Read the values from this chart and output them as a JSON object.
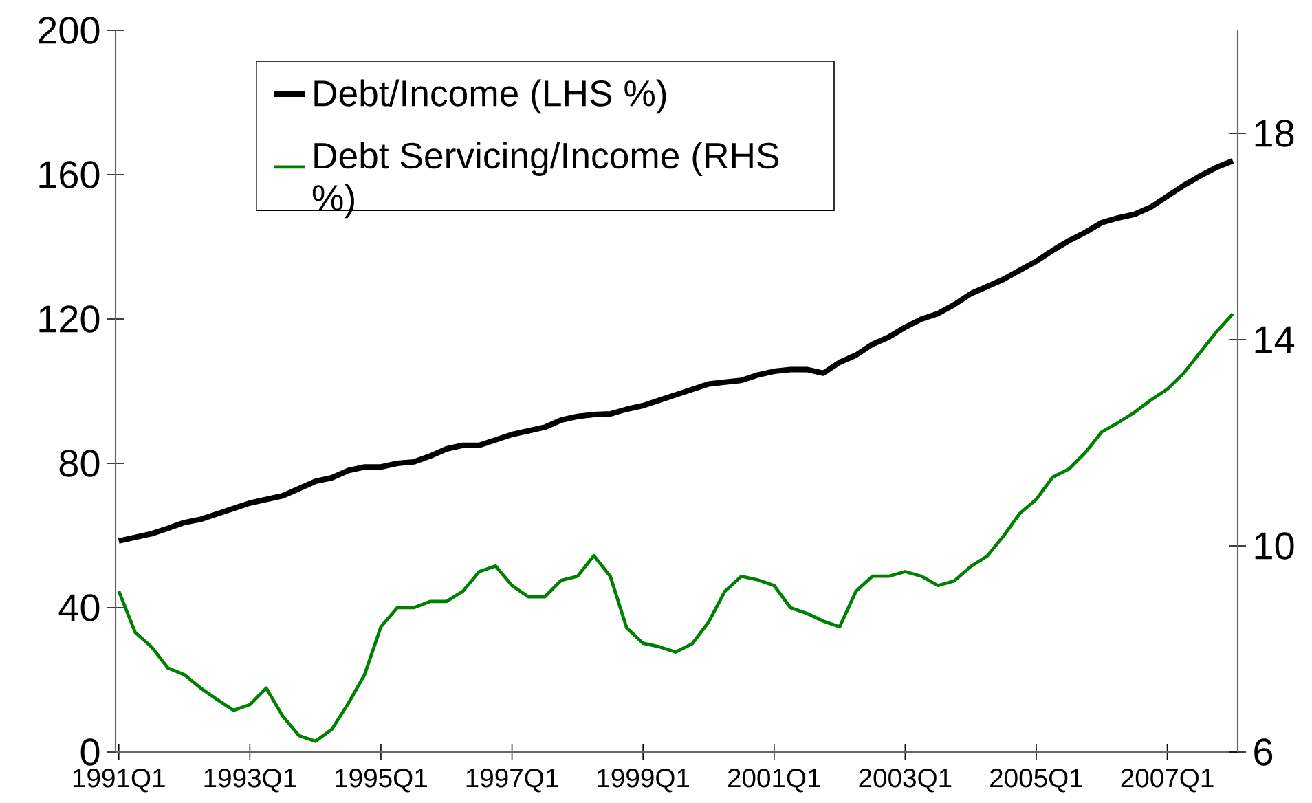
{
  "chart_data": {
    "type": "line",
    "categories": [
      "1991Q1",
      null,
      null,
      null,
      null,
      null,
      null,
      null,
      "1993Q1",
      null,
      null,
      null,
      null,
      null,
      null,
      null,
      "1995Q1",
      null,
      null,
      null,
      null,
      null,
      null,
      null,
      "1997Q1",
      null,
      null,
      null,
      null,
      null,
      null,
      null,
      "1999Q1",
      null,
      null,
      null,
      null,
      null,
      null,
      null,
      "2001Q1",
      null,
      null,
      null,
      null,
      null,
      null,
      null,
      "2003Q1",
      null,
      null,
      null,
      null,
      null,
      null,
      null,
      "2005Q1",
      null,
      null,
      null,
      null,
      null,
      null,
      null,
      "2007Q1",
      null,
      null,
      null,
      null
    ],
    "series": [
      {
        "name": "Debt/Income (LHS %)",
        "color": "#000000",
        "values": [
          58.5,
          59.5,
          60.5,
          62,
          63.6,
          64.5,
          66,
          67.5,
          69,
          70,
          71,
          73,
          75,
          76,
          78,
          79,
          79,
          80,
          80.4,
          82,
          84,
          85,
          85,
          86.5,
          88,
          89,
          90,
          92,
          93,
          93.5,
          93.7,
          95,
          96,
          97.5,
          99,
          100.5,
          102,
          102.5,
          103,
          104.5,
          105.5,
          106,
          106,
          105,
          108,
          110,
          113,
          115,
          117.7,
          120,
          121.5,
          124,
          127,
          129,
          131,
          133.5,
          136,
          139,
          141.7,
          144,
          146.7,
          148,
          149,
          151,
          154,
          157,
          159.6,
          162,
          163.8
        ]
      },
      {
        "name": "Debt Servicing/Income (RHS %)",
        "color": "#008000",
        "axis": "y2",
        "values": [
          9.12,
          8.32,
          8.04,
          7.63,
          7.5,
          7.24,
          7.02,
          6.81,
          6.92,
          7.24,
          6.7,
          6.32,
          6.21,
          6.44,
          6.94,
          7.5,
          8.43,
          8.8,
          8.8,
          8.92,
          8.92,
          9.12,
          9.5,
          9.61,
          9.23,
          9.01,
          9.01,
          9.33,
          9.41,
          9.81,
          9.41,
          8.41,
          8.11,
          8.04,
          7.94,
          8.1,
          8.52,
          9.12,
          9.41,
          9.34,
          9.23,
          8.8,
          8.69,
          8.54,
          8.43,
          9.12,
          9.41,
          9.41,
          9.5,
          9.41,
          9.23,
          9.32,
          9.6,
          9.8,
          10.19,
          10.63,
          10.9,
          11.33,
          11.49,
          11.81,
          12.21,
          12.39,
          12.59,
          12.83,
          13.04,
          13.35,
          13.75,
          14.15,
          14.5
        ]
      }
    ],
    "ylim": [
      0,
      200
    ],
    "yticks": [
      0,
      40,
      80,
      120,
      160,
      200
    ],
    "y2lim": [
      6,
      20
    ],
    "y2ticks": [
      6,
      10,
      14,
      18
    ],
    "legend": "top left",
    "grid": false
  }
}
